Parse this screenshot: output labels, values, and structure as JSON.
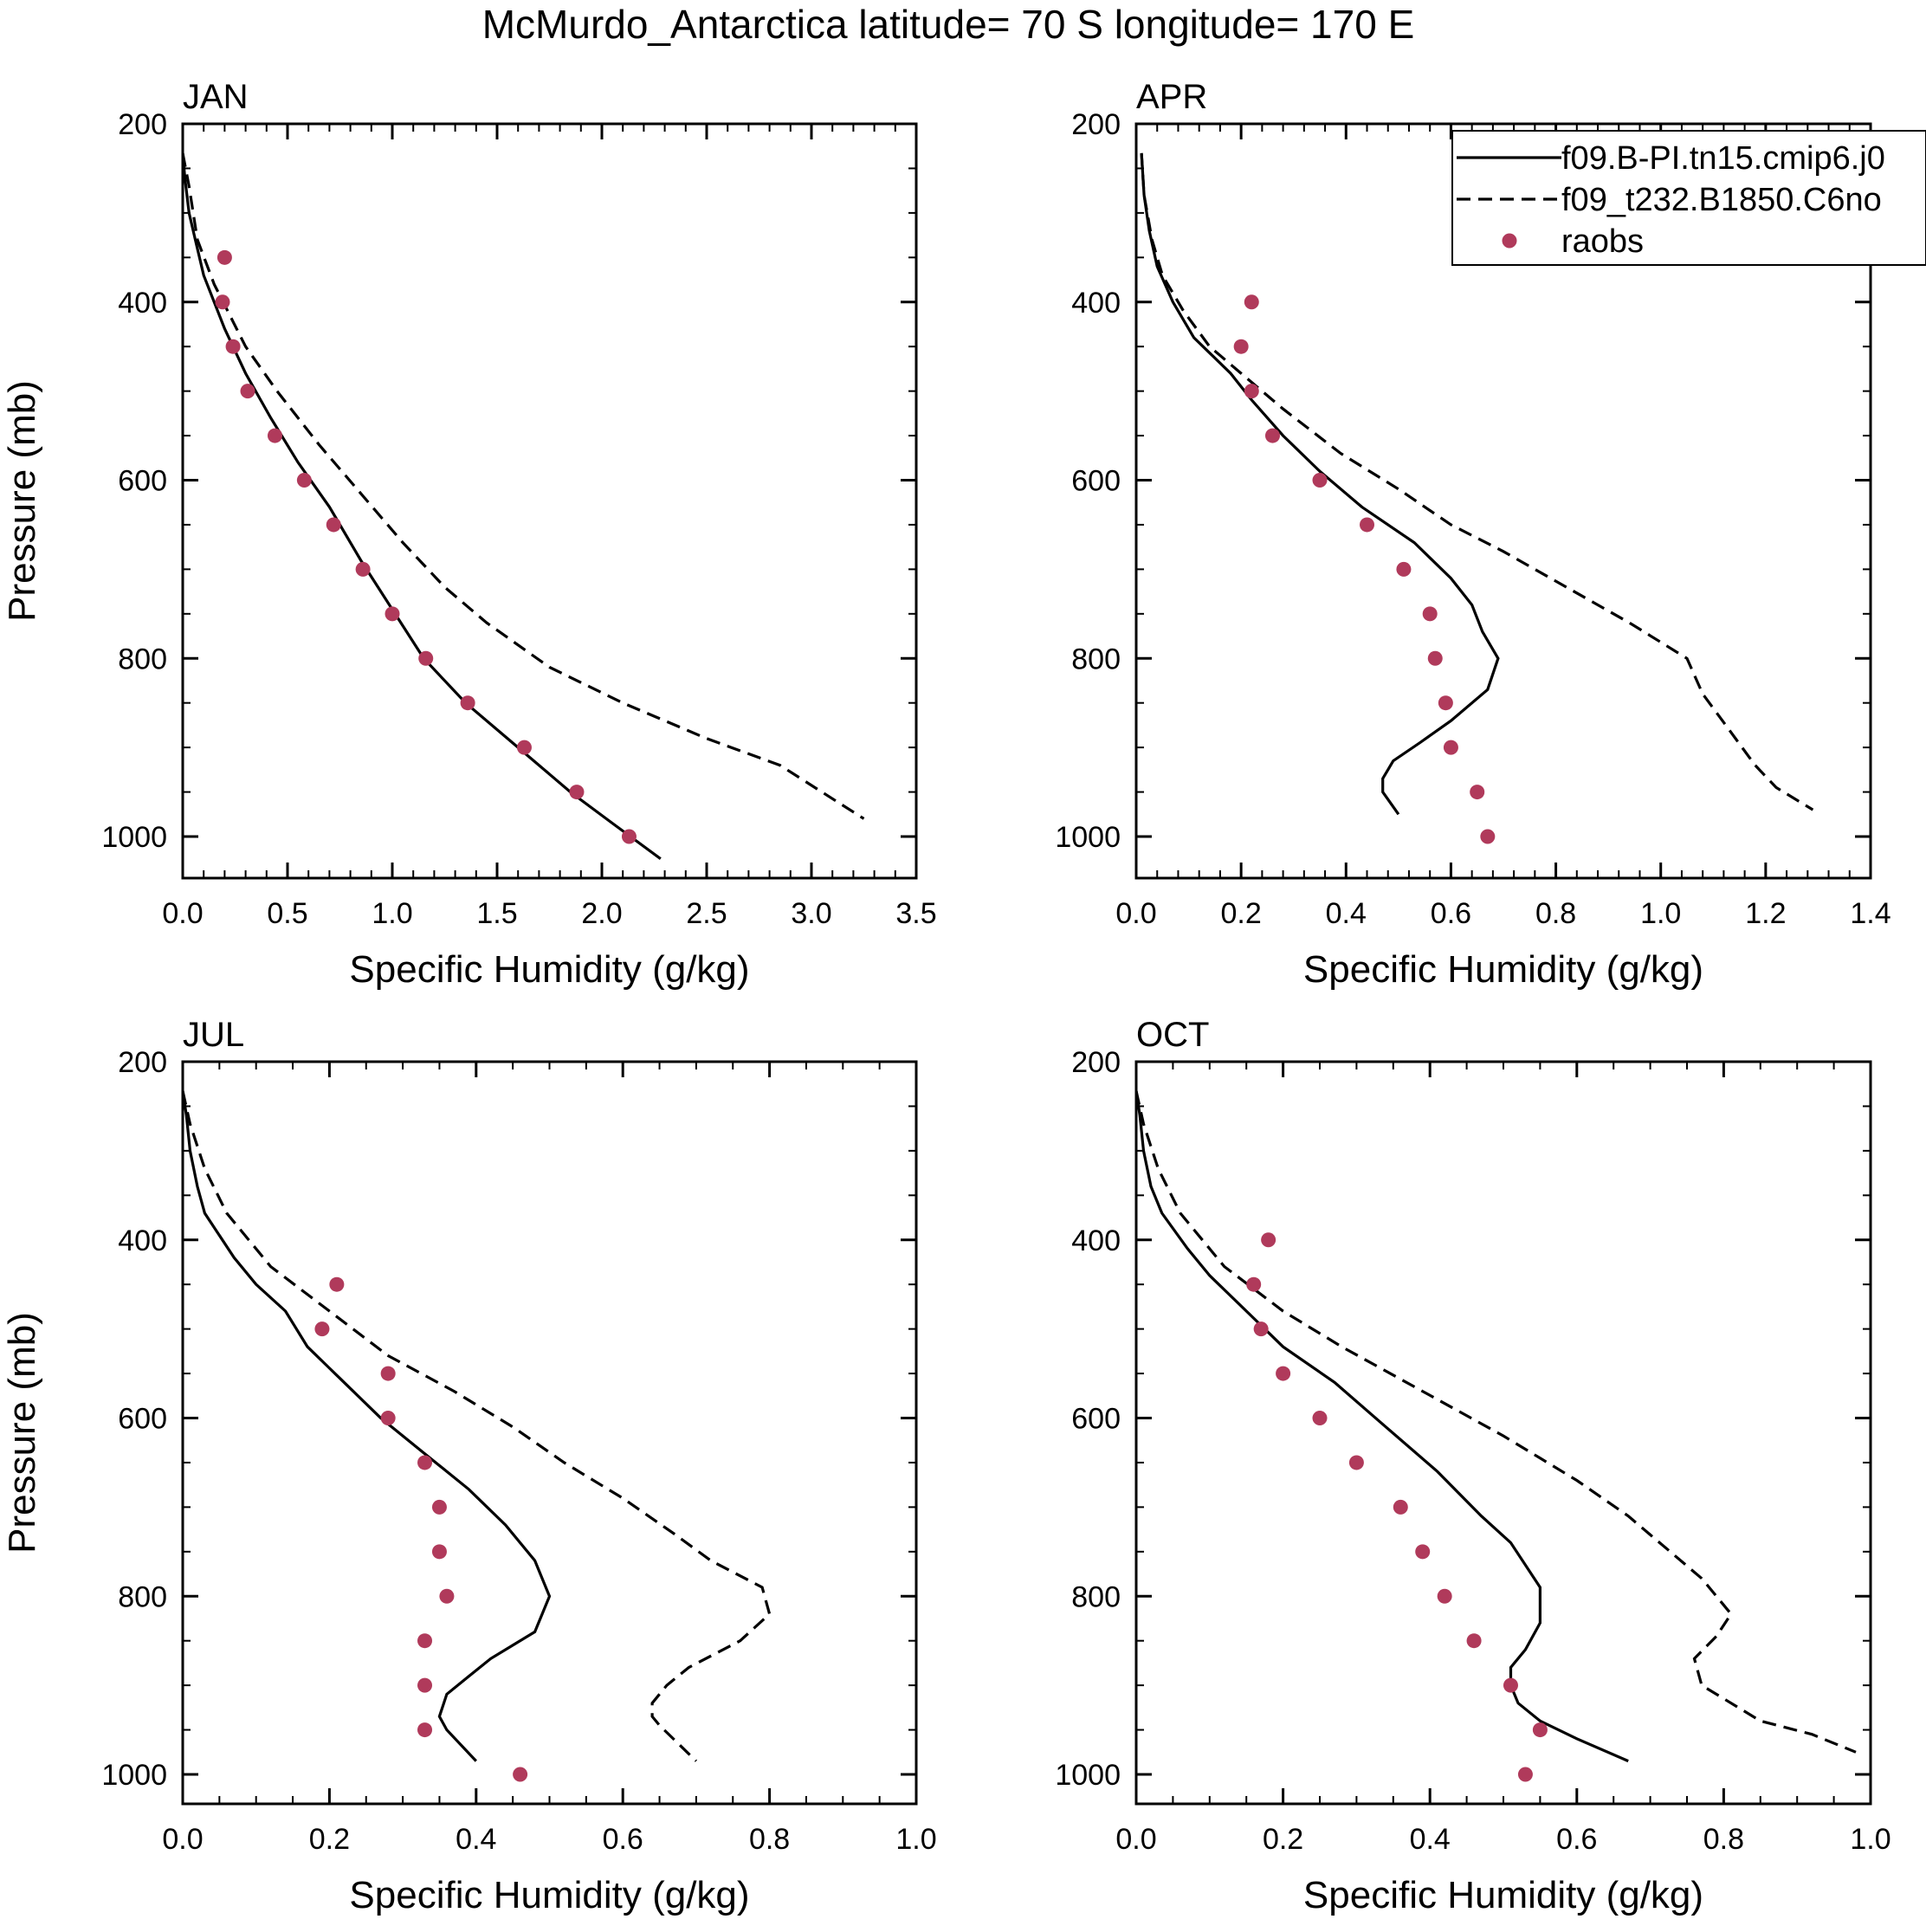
{
  "chart_data": {
    "type": "line",
    "title": "McMurdo_Antarctica  latitude= 70 S longitude= 170 E",
    "legend": {
      "placement": "top-right of APR panel",
      "entries": [
        {
          "label": "f09.B-PI.tn15.cmip6.j0",
          "style": "solid"
        },
        {
          "label": "f09_t232.B1850.C6no",
          "style": "dashed"
        },
        {
          "label": "raobs",
          "style": "dots"
        }
      ]
    },
    "colors": {
      "model_lines": "#000000",
      "raobs": "#b03a5b"
    },
    "panels": [
      {
        "name": "JAN",
        "xlabel": "Specific Humidity (g/kg)",
        "ylabel": "Pressure (mb)",
        "xlim": [
          0,
          3.5
        ],
        "xticks": [
          "0.0",
          "0.5",
          "1.0",
          "1.5",
          "2.0",
          "2.5",
          "3.0",
          "3.5"
        ],
        "ylim": [
          200,
          1050
        ],
        "yticks": [
          "200",
          "400",
          "600",
          "800",
          "1000"
        ],
        "series": [
          {
            "name": "f09.B-PI.tn15.cmip6.j0",
            "style": "solid",
            "points": [
              [
                0.0,
                233
              ],
              [
                0.01,
                260
              ],
              [
                0.03,
                300
              ],
              [
                0.06,
                330
              ],
              [
                0.1,
                370
              ],
              [
                0.2,
                430
              ],
              [
                0.3,
                480
              ],
              [
                0.42,
                530
              ],
              [
                0.55,
                580
              ],
              [
                0.7,
                630
              ],
              [
                0.85,
                690
              ],
              [
                1.0,
                745
              ],
              [
                1.15,
                800
              ],
              [
                1.35,
                850
              ],
              [
                1.6,
                900
              ],
              [
                1.85,
                950
              ],
              [
                2.05,
                985
              ],
              [
                2.28,
                1025
              ]
            ]
          },
          {
            "name": "f09_t232.B1850.C6no",
            "style": "dashed",
            "points": [
              [
                0.0,
                233
              ],
              [
                0.03,
                270
              ],
              [
                0.07,
                330
              ],
              [
                0.15,
                380
              ],
              [
                0.3,
                450
              ],
              [
                0.45,
                500
              ],
              [
                0.65,
                560
              ],
              [
                0.85,
                615
              ],
              [
                1.05,
                670
              ],
              [
                1.25,
                720
              ],
              [
                1.45,
                760
              ],
              [
                1.75,
                810
              ],
              [
                2.1,
                850
              ],
              [
                2.5,
                890
              ],
              [
                2.85,
                920
              ],
              [
                3.05,
                950
              ],
              [
                3.25,
                980
              ]
            ]
          }
        ],
        "raobs": [
          [
            0.2,
            350
          ],
          [
            0.19,
            400
          ],
          [
            0.24,
            450
          ],
          [
            0.31,
            500
          ],
          [
            0.44,
            550
          ],
          [
            0.58,
            600
          ],
          [
            0.72,
            650
          ],
          [
            0.86,
            700
          ],
          [
            1.0,
            750
          ],
          [
            1.16,
            800
          ],
          [
            1.36,
            850
          ],
          [
            1.63,
            900
          ],
          [
            1.88,
            950
          ],
          [
            2.13,
            1000
          ]
        ]
      },
      {
        "name": "APR",
        "xlabel": "Specific Humidity (g/kg)",
        "ylabel": "",
        "xlim": [
          0,
          1.4
        ],
        "xticks": [
          "0.0",
          "0.2",
          "0.4",
          "0.6",
          "0.8",
          "1.0",
          "1.2",
          "1.4"
        ],
        "ylim": [
          200,
          1050
        ],
        "yticks": [
          "200",
          "400",
          "600",
          "800",
          "1000"
        ],
        "series": [
          {
            "name": "f09.B-PI.tn15.cmip6.j0",
            "style": "solid",
            "points": [
              [
                0.01,
                233
              ],
              [
                0.015,
                280
              ],
              [
                0.025,
                320
              ],
              [
                0.04,
                360
              ],
              [
                0.07,
                400
              ],
              [
                0.11,
                440
              ],
              [
                0.18,
                480
              ],
              [
                0.22,
                510
              ],
              [
                0.28,
                550
              ],
              [
                0.35,
                590
              ],
              [
                0.43,
                630
              ],
              [
                0.53,
                670
              ],
              [
                0.6,
                710
              ],
              [
                0.64,
                740
              ],
              [
                0.66,
                770
              ],
              [
                0.69,
                800
              ],
              [
                0.67,
                835
              ],
              [
                0.6,
                870
              ],
              [
                0.54,
                895
              ],
              [
                0.49,
                915
              ],
              [
                0.47,
                935
              ],
              [
                0.47,
                950
              ],
              [
                0.5,
                975
              ]
            ]
          },
          {
            "name": "f09_t232.B1850.C6no",
            "style": "dashed",
            "points": [
              [
                0.01,
                233
              ],
              [
                0.015,
                280
              ],
              [
                0.03,
                330
              ],
              [
                0.05,
                370
              ],
              [
                0.09,
                410
              ],
              [
                0.14,
                450
              ],
              [
                0.2,
                480
              ],
              [
                0.28,
                520
              ],
              [
                0.39,
                570
              ],
              [
                0.5,
                610
              ],
              [
                0.6,
                650
              ],
              [
                0.7,
                680
              ],
              [
                0.82,
                720
              ],
              [
                0.94,
                760
              ],
              [
                1.05,
                800
              ],
              [
                1.08,
                840
              ],
              [
                1.13,
                880
              ],
              [
                1.18,
                920
              ],
              [
                1.22,
                945
              ],
              [
                1.29,
                970
              ]
            ]
          }
        ],
        "raobs": [
          [
            0.22,
            400
          ],
          [
            0.2,
            450
          ],
          [
            0.22,
            500
          ],
          [
            0.26,
            550
          ],
          [
            0.35,
            600
          ],
          [
            0.44,
            650
          ],
          [
            0.51,
            700
          ],
          [
            0.56,
            750
          ],
          [
            0.57,
            800
          ],
          [
            0.59,
            850
          ],
          [
            0.6,
            900
          ],
          [
            0.65,
            950
          ],
          [
            0.67,
            1000
          ]
        ]
      },
      {
        "name": "JUL",
        "xlabel": "Specific Humidity (g/kg)",
        "ylabel": "Pressure (mb)",
        "xlim": [
          0,
          1.0
        ],
        "xticks": [
          "0.0",
          "0.2",
          "0.4",
          "0.6",
          "0.8",
          "1.0"
        ],
        "ylim": [
          200,
          1050
        ],
        "yticks": [
          "200",
          "400",
          "600",
          "800",
          "1000"
        ],
        "series": [
          {
            "name": "f09.B-PI.tn15.cmip6.j0",
            "style": "solid",
            "points": [
              [
                0.0,
                233
              ],
              [
                0.005,
                260
              ],
              [
                0.01,
                300
              ],
              [
                0.02,
                340
              ],
              [
                0.03,
                370
              ],
              [
                0.07,
                420
              ],
              [
                0.1,
                450
              ],
              [
                0.14,
                480
              ],
              [
                0.17,
                520
              ],
              [
                0.22,
                560
              ],
              [
                0.27,
                600
              ],
              [
                0.33,
                640
              ],
              [
                0.39,
                680
              ],
              [
                0.44,
                720
              ],
              [
                0.48,
                760
              ],
              [
                0.5,
                800
              ],
              [
                0.48,
                840
              ],
              [
                0.42,
                870
              ],
              [
                0.39,
                890
              ],
              [
                0.36,
                910
              ],
              [
                0.35,
                935
              ],
              [
                0.36,
                950
              ],
              [
                0.4,
                985
              ]
            ]
          },
          {
            "name": "f09_t232.B1850.C6no",
            "style": "dashed",
            "points": [
              [
                0.0,
                233
              ],
              [
                0.01,
                270
              ],
              [
                0.03,
                320
              ],
              [
                0.06,
                370
              ],
              [
                0.12,
                430
              ],
              [
                0.2,
                480
              ],
              [
                0.28,
                530
              ],
              [
                0.37,
                570
              ],
              [
                0.45,
                610
              ],
              [
                0.52,
                650
              ],
              [
                0.6,
                690
              ],
              [
                0.67,
                730
              ],
              [
                0.72,
                760
              ],
              [
                0.79,
                790
              ],
              [
                0.8,
                820
              ],
              [
                0.76,
                850
              ],
              [
                0.69,
                880
              ],
              [
                0.66,
                900
              ],
              [
                0.64,
                920
              ],
              [
                0.64,
                935
              ],
              [
                0.65,
                945
              ],
              [
                0.7,
                985
              ]
            ]
          }
        ],
        "raobs": [
          [
            0.21,
            450
          ],
          [
            0.19,
            500
          ],
          [
            0.28,
            550
          ],
          [
            0.28,
            600
          ],
          [
            0.33,
            650
          ],
          [
            0.35,
            700
          ],
          [
            0.35,
            750
          ],
          [
            0.36,
            800
          ],
          [
            0.33,
            850
          ],
          [
            0.33,
            900
          ],
          [
            0.33,
            950
          ],
          [
            0.46,
            1000
          ]
        ]
      },
      {
        "name": "OCT",
        "xlabel": "Specific Humidity (g/kg)",
        "ylabel": "",
        "xlim": [
          0,
          1.0
        ],
        "xticks": [
          "0.0",
          "0.2",
          "0.4",
          "0.6",
          "0.8",
          "1.0"
        ],
        "ylim": [
          200,
          1050
        ],
        "yticks": [
          "200",
          "400",
          "600",
          "800",
          "1000"
        ],
        "series": [
          {
            "name": "f09.B-PI.tn15.cmip6.j0",
            "style": "solid",
            "points": [
              [
                0.0,
                233
              ],
              [
                0.005,
                260
              ],
              [
                0.01,
                300
              ],
              [
                0.02,
                340
              ],
              [
                0.035,
                370
              ],
              [
                0.07,
                410
              ],
              [
                0.1,
                440
              ],
              [
                0.15,
                480
              ],
              [
                0.2,
                520
              ],
              [
                0.27,
                560
              ],
              [
                0.34,
                610
              ],
              [
                0.41,
                660
              ],
              [
                0.47,
                710
              ],
              [
                0.51,
                740
              ],
              [
                0.55,
                790
              ],
              [
                0.55,
                830
              ],
              [
                0.53,
                860
              ],
              [
                0.51,
                880
              ],
              [
                0.51,
                900
              ],
              [
                0.52,
                920
              ],
              [
                0.55,
                940
              ],
              [
                0.6,
                960
              ],
              [
                0.67,
                985
              ]
            ]
          },
          {
            "name": "f09_t232.B1850.C6no",
            "style": "dashed",
            "points": [
              [
                0.0,
                233
              ],
              [
                0.01,
                270
              ],
              [
                0.03,
                320
              ],
              [
                0.06,
                370
              ],
              [
                0.12,
                430
              ],
              [
                0.2,
                480
              ],
              [
                0.28,
                520
              ],
              [
                0.39,
                570
              ],
              [
                0.5,
                620
              ],
              [
                0.6,
                670
              ],
              [
                0.67,
                710
              ],
              [
                0.72,
                745
              ],
              [
                0.77,
                780
              ],
              [
                0.81,
                820
              ],
              [
                0.79,
                845
              ],
              [
                0.76,
                870
              ],
              [
                0.77,
                900
              ],
              [
                0.85,
                940
              ],
              [
                0.92,
                955
              ],
              [
                0.98,
                975
              ]
            ]
          }
        ],
        "raobs": [
          [
            0.18,
            400
          ],
          [
            0.16,
            450
          ],
          [
            0.17,
            500
          ],
          [
            0.2,
            550
          ],
          [
            0.25,
            600
          ],
          [
            0.3,
            650
          ],
          [
            0.36,
            700
          ],
          [
            0.39,
            750
          ],
          [
            0.42,
            800
          ],
          [
            0.46,
            850
          ],
          [
            0.51,
            900
          ],
          [
            0.55,
            950
          ],
          [
            0.53,
            1000
          ]
        ]
      }
    ]
  }
}
